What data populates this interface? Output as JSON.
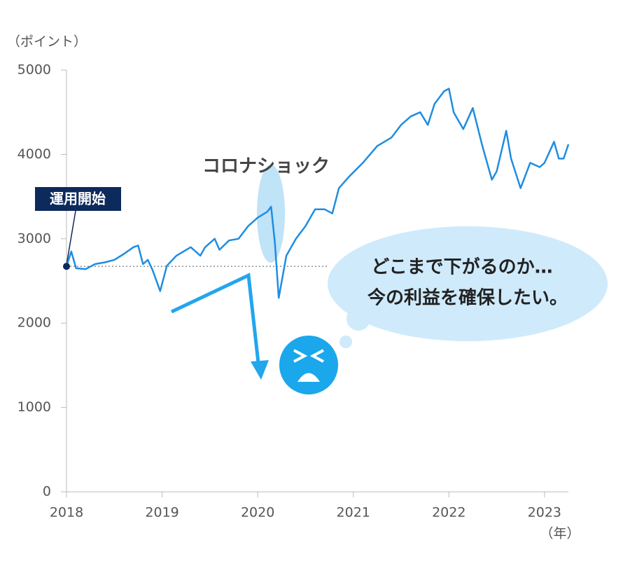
{
  "chart_data": {
    "type": "line",
    "y_unit_label": "（ポイント）",
    "x_unit_label": "（年）",
    "annotations": {
      "covid": "コロナショック",
      "start": "運用開始",
      "thought_line1": "どこまで下がるのか…",
      "thought_line2": "今の利益を確保したい。"
    },
    "x": [
      2018.0,
      2018.05,
      2018.1,
      2018.2,
      2018.3,
      2018.4,
      2018.5,
      2018.6,
      2018.7,
      2018.75,
      2018.8,
      2018.85,
      2018.9,
      2018.98,
      2019.05,
      2019.15,
      2019.3,
      2019.4,
      2019.45,
      2019.55,
      2019.6,
      2019.7,
      2019.8,
      2019.9,
      2020.0,
      2020.1,
      2020.14,
      2020.18,
      2020.22,
      2020.3,
      2020.4,
      2020.5,
      2020.6,
      2020.7,
      2020.78,
      2020.85,
      2020.95,
      2021.1,
      2021.25,
      2021.4,
      2021.5,
      2021.6,
      2021.7,
      2021.78,
      2021.85,
      2021.95,
      2022.0,
      2022.05,
      2022.15,
      2022.25,
      2022.35,
      2022.45,
      2022.5,
      2022.6,
      2022.65,
      2022.75,
      2022.85,
      2022.95,
      2023.0,
      2023.1,
      2023.15,
      2023.2,
      2023.25
    ],
    "values": [
      2673,
      2850,
      2650,
      2640,
      2700,
      2720,
      2750,
      2820,
      2900,
      2920,
      2700,
      2750,
      2630,
      2380,
      2680,
      2800,
      2900,
      2800,
      2900,
      3000,
      2870,
      2980,
      3000,
      3150,
      3250,
      3320,
      3380,
      2950,
      2300,
      2800,
      3000,
      3150,
      3350,
      3350,
      3300,
      3600,
      3730,
      3900,
      4100,
      4200,
      4350,
      4450,
      4500,
      4350,
      4600,
      4750,
      4780,
      4500,
      4300,
      4550,
      4100,
      3700,
      3800,
      4280,
      3950,
      3600,
      3900,
      3850,
      3900,
      4150,
      3950,
      3950,
      4120
    ],
    "color": "#1f8de0",
    "xlim": [
      2018,
      2023.25
    ],
    "ylim": [
      0,
      5000
    ],
    "xticks": [
      2018,
      2019,
      2020,
      2021,
      2022,
      2023
    ],
    "yticks": [
      0,
      1000,
      2000,
      3000,
      4000,
      5000
    ]
  }
}
